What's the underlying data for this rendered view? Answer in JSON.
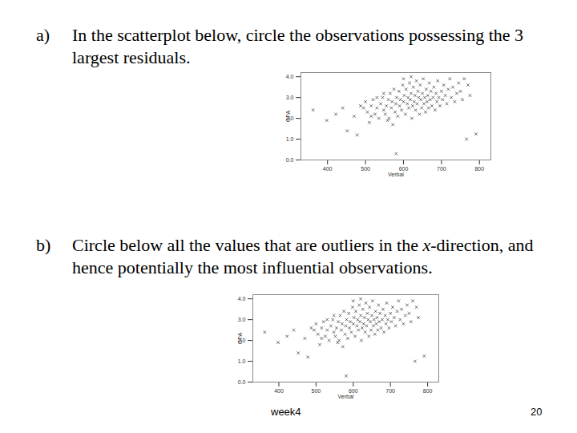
{
  "questions": [
    {
      "label": "a)",
      "segments": [
        {
          "text": "In the scatterplot below, circle the observations possessing the 3 largest residuals.",
          "italic": false
        }
      ]
    },
    {
      "label": "b)",
      "segments": [
        {
          "text": "Circle below all the values that are outliers in the ",
          "italic": false
        },
        {
          "text": "x",
          "italic": true
        },
        {
          "text": "-direction, and hence potentially the most influential observations.",
          "italic": false
        }
      ]
    }
  ],
  "footer": {
    "left": "week4",
    "right": "20"
  },
  "chart_data": [
    {
      "type": "scatter",
      "x_label": "Verbal",
      "y_label": "GPA",
      "marker": "x",
      "grid": false,
      "xlim": [
        330,
        830
      ],
      "xticks": [
        400,
        500,
        600,
        700,
        800
      ],
      "ylim": [
        0,
        4.2
      ],
      "yticks": [
        0,
        1,
        2,
        3,
        4
      ],
      "x": [
        362,
        398,
        422,
        440,
        452,
        470,
        478,
        487,
        495,
        500,
        505,
        510,
        515,
        520,
        525,
        530,
        535,
        540,
        545,
        548,
        552,
        555,
        560,
        562,
        565,
        568,
        570,
        572,
        575,
        578,
        580,
        582,
        585,
        588,
        590,
        581,
        592,
        595,
        598,
        600,
        602,
        605,
        607,
        610,
        612,
        614,
        616,
        618,
        620,
        622,
        624,
        626,
        628,
        630,
        632,
        634,
        636,
        638,
        640,
        642,
        644,
        646,
        648,
        650,
        652,
        654,
        656,
        658,
        660,
        662,
        664,
        666,
        668,
        670,
        672,
        675,
        678,
        680,
        683,
        686,
        688,
        690,
        693,
        696,
        700,
        703,
        706,
        710,
        714,
        718,
        722,
        726,
        730,
        735,
        740,
        745,
        750,
        755,
        760,
        766,
        770,
        775,
        791,
        548,
        530,
        515,
        558,
        600,
        620
      ],
      "values": [
        2.4,
        1.9,
        2.2,
        2.5,
        1.4,
        2.1,
        1.2,
        2.6,
        2.5,
        2.8,
        2.3,
        1.8,
        2.6,
        2.9,
        2.2,
        2.5,
        2.0,
        2.7,
        3.0,
        2.4,
        2.2,
        2.6,
        2.9,
        2.0,
        3.2,
        2.5,
        2.8,
        1.7,
        3.4,
        2.3,
        2.7,
        3.0,
        2.1,
        3.3,
        2.6,
        0.3,
        2.9,
        2.4,
        3.6,
        2.8,
        3.1,
        2.2,
        3.4,
        2.7,
        3.0,
        2.5,
        3.7,
        2.9,
        3.2,
        2.0,
        2.6,
        3.5,
        2.8,
        3.1,
        2.4,
        3.8,
        2.7,
        3.3,
        3.0,
        2.2,
        3.6,
        2.9,
        2.5,
        3.2,
        3.9,
        2.7,
        3.0,
        2.3,
        3.4,
        2.8,
        3.1,
        2.5,
        3.7,
        2.9,
        3.3,
        2.6,
        3.0,
        3.5,
        2.4,
        3.2,
        2.8,
        3.8,
        3.0,
        2.6,
        3.3,
        2.9,
        3.6,
        3.1,
        2.7,
        3.4,
        3.9,
        3.0,
        3.5,
        2.8,
        3.2,
        3.7,
        3.3,
        2.9,
        3.9,
        1.0,
        3.6,
        3.1,
        1.25,
        3.2,
        3.0,
        2.1,
        1.9,
        3.9,
        4.0
      ]
    },
    {
      "type": "scatter",
      "x_label": "Verbal",
      "y_label": "GPA",
      "marker": "x",
      "grid": false,
      "xlim": [
        330,
        830
      ],
      "xticks": [
        400,
        500,
        600,
        700,
        800
      ],
      "ylim": [
        0,
        4.2
      ],
      "yticks": [
        0,
        1,
        2,
        3,
        4
      ],
      "x": [
        362,
        398,
        422,
        440,
        452,
        470,
        478,
        487,
        495,
        500,
        505,
        510,
        515,
        520,
        525,
        530,
        535,
        540,
        545,
        548,
        552,
        555,
        560,
        562,
        565,
        568,
        570,
        572,
        575,
        578,
        580,
        582,
        585,
        588,
        590,
        581,
        592,
        595,
        598,
        600,
        602,
        605,
        607,
        610,
        612,
        614,
        616,
        618,
        620,
        622,
        624,
        626,
        628,
        630,
        632,
        634,
        636,
        638,
        640,
        642,
        644,
        646,
        648,
        650,
        652,
        654,
        656,
        658,
        660,
        662,
        664,
        666,
        668,
        670,
        672,
        675,
        678,
        680,
        683,
        686,
        688,
        690,
        693,
        696,
        700,
        703,
        706,
        710,
        714,
        718,
        722,
        726,
        730,
        735,
        740,
        745,
        750,
        755,
        760,
        766,
        770,
        775,
        791,
        548,
        530,
        515,
        558,
        600,
        620
      ],
      "values": [
        2.4,
        1.9,
        2.2,
        2.5,
        1.4,
        2.1,
        1.2,
        2.6,
        2.5,
        2.8,
        2.3,
        1.8,
        2.6,
        2.9,
        2.2,
        2.5,
        2.0,
        2.7,
        3.0,
        2.4,
        2.2,
        2.6,
        2.9,
        2.0,
        3.2,
        2.5,
        2.8,
        1.7,
        3.4,
        2.3,
        2.7,
        3.0,
        2.1,
        3.3,
        2.6,
        0.3,
        2.9,
        2.4,
        3.6,
        2.8,
        3.1,
        2.2,
        3.4,
        2.7,
        3.0,
        2.5,
        3.7,
        2.9,
        3.2,
        2.0,
        2.6,
        3.5,
        2.8,
        3.1,
        2.4,
        3.8,
        2.7,
        3.3,
        3.0,
        2.2,
        3.6,
        2.9,
        2.5,
        3.2,
        3.9,
        2.7,
        3.0,
        2.3,
        3.4,
        2.8,
        3.1,
        2.5,
        3.7,
        2.9,
        3.3,
        2.6,
        3.0,
        3.5,
        2.4,
        3.2,
        2.8,
        3.8,
        3.0,
        2.6,
        3.3,
        2.9,
        3.6,
        3.1,
        2.7,
        3.4,
        3.9,
        3.0,
        3.5,
        2.8,
        3.2,
        3.7,
        3.3,
        2.9,
        3.9,
        1.0,
        3.6,
        3.1,
        1.25,
        3.2,
        3.0,
        2.1,
        1.9,
        3.9,
        4.0
      ]
    }
  ]
}
